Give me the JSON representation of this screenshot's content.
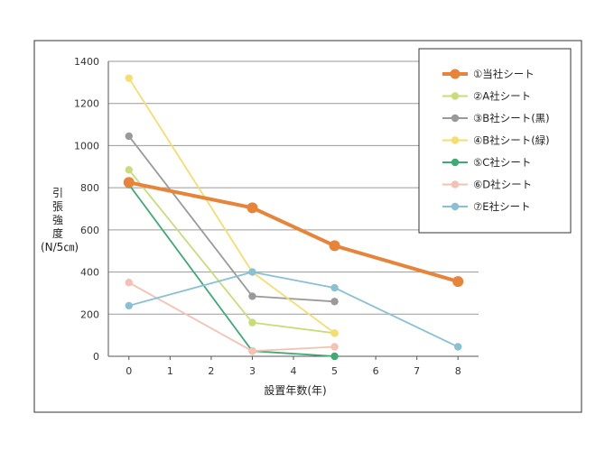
{
  "chart_data": {
    "type": "line",
    "title": "",
    "xlabel": "設置年数(年)",
    "ylabel": "引張強度",
    "ylabel_unit": "(N/5㎝)",
    "x_ticks": [
      0,
      1,
      2,
      3,
      4,
      5,
      6,
      7,
      8
    ],
    "xlim": [
      -0.5,
      8.5
    ],
    "y_ticks": [
      0,
      200,
      400,
      600,
      800,
      1000,
      1200,
      1400
    ],
    "ylim": [
      0,
      1400
    ],
    "grid": "horizontal",
    "legend_position": "top-right",
    "series": [
      {
        "name": "①当社シート",
        "color": "#E8833A",
        "emphasis": true,
        "x": [
          0,
          3,
          5,
          8
        ],
        "y": [
          825,
          705,
          525,
          355
        ]
      },
      {
        "name": "②A社シート",
        "color": "#C8DD7A",
        "x": [
          0,
          3,
          5
        ],
        "y": [
          885,
          160,
          110
        ]
      },
      {
        "name": "③B社シート(黒)",
        "color": "#9A9A9A",
        "x": [
          0,
          3,
          5
        ],
        "y": [
          1045,
          285,
          260
        ]
      },
      {
        "name": "④B社シート(緑)",
        "color": "#F6DD6E",
        "x": [
          0,
          3,
          5
        ],
        "y": [
          1320,
          400,
          110
        ]
      },
      {
        "name": "⑤C社シート",
        "color": "#3EAA74",
        "x": [
          0,
          3,
          5
        ],
        "y": [
          815,
          25,
          0
        ]
      },
      {
        "name": "⑥D社シート",
        "color": "#F4C1B3",
        "x": [
          0,
          3,
          5
        ],
        "y": [
          350,
          25,
          45
        ]
      },
      {
        "name": "⑦E社シート",
        "color": "#88C1D4",
        "x": [
          0,
          3,
          5,
          8
        ],
        "y": [
          240,
          400,
          325,
          45
        ]
      }
    ]
  }
}
